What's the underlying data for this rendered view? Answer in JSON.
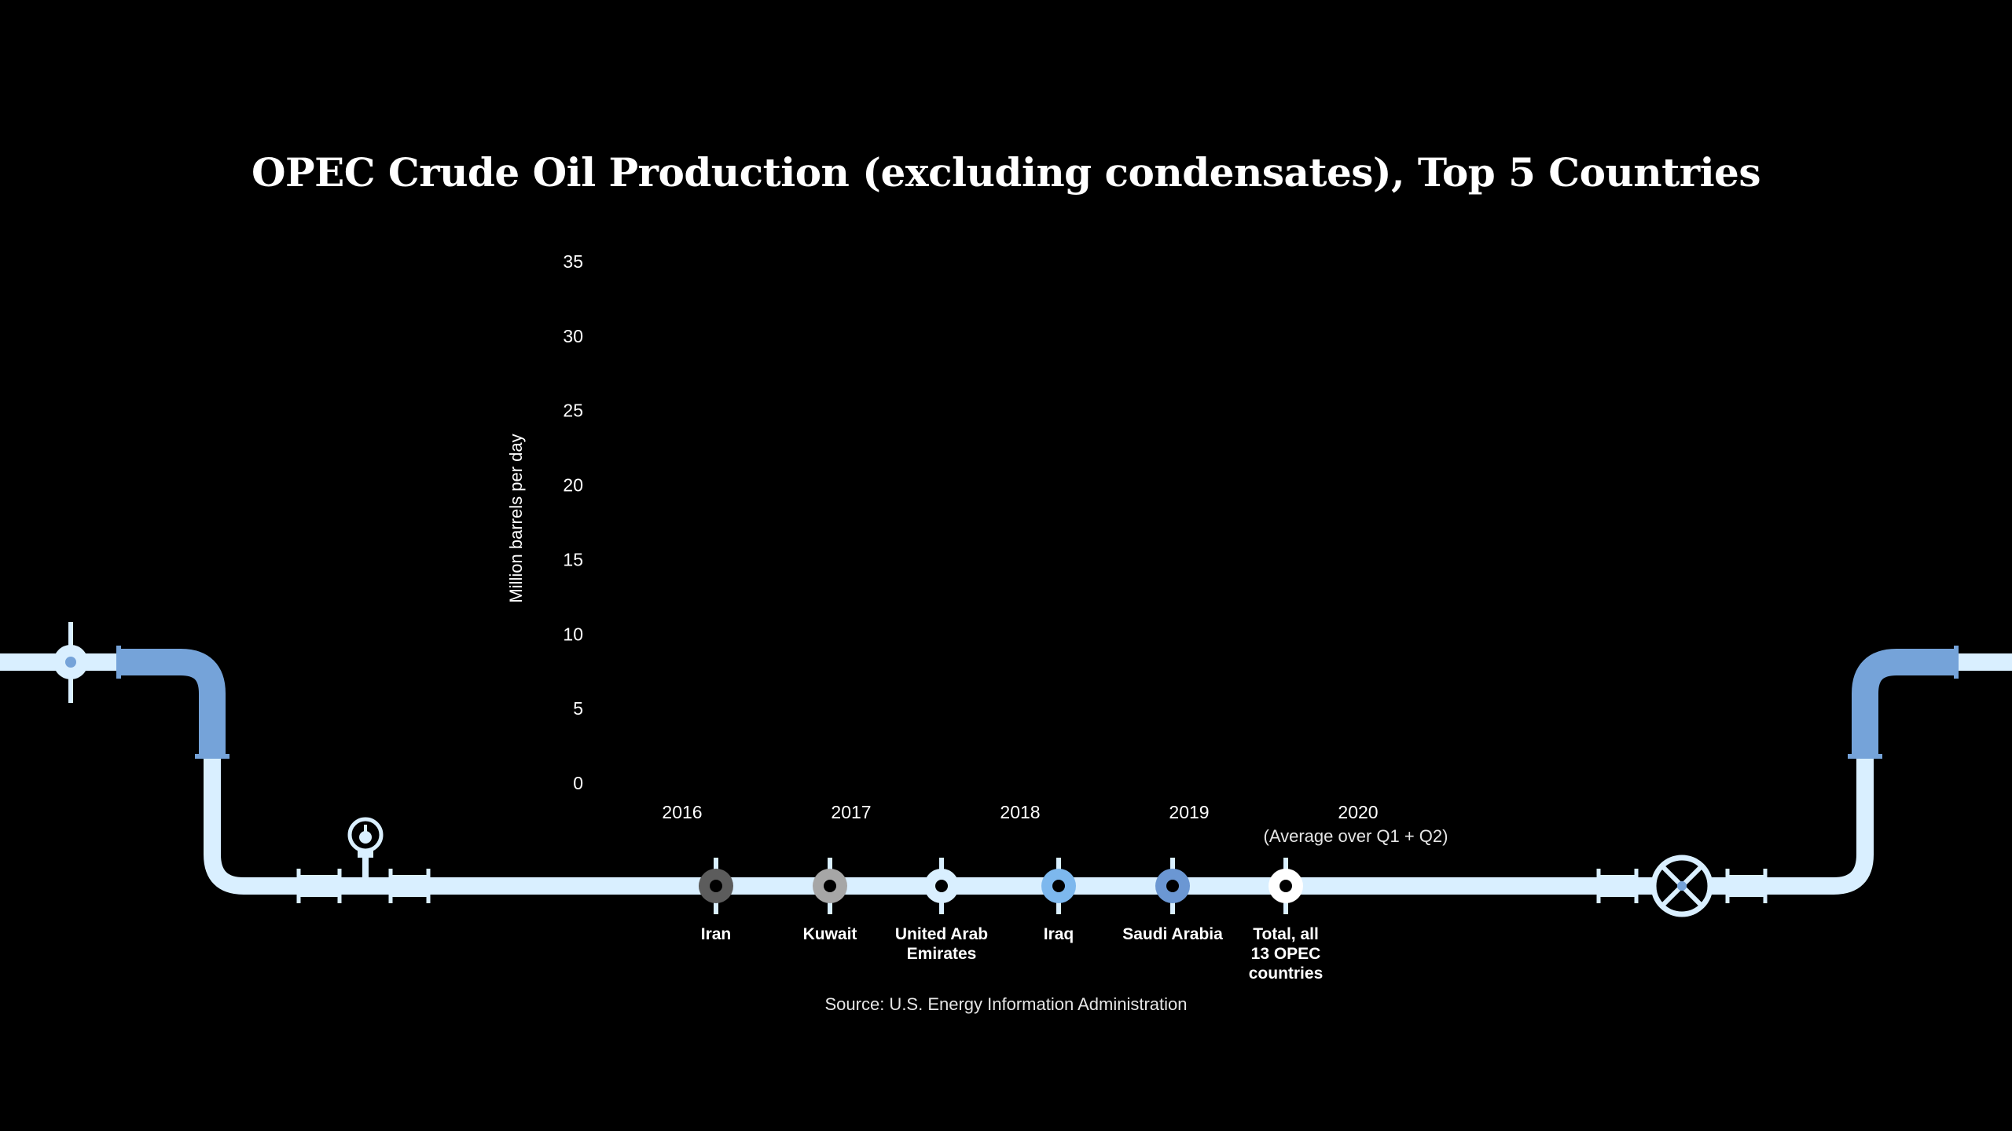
{
  "colors": {
    "background": "#000000",
    "pipe_light": "#d9efff",
    "pipe_blue": "#75a3d9",
    "text": "#ffffff"
  },
  "chart_data": {
    "type": "bar",
    "title": "OPEC Crude Oil Production (excluding condensates), Top 5 Countries",
    "ylabel": "Million barrels per day",
    "ylim": [
      0,
      35
    ],
    "yticks": [
      0,
      5,
      10,
      15,
      20,
      25,
      30,
      35
    ],
    "categories": [
      "2016",
      "2017",
      "2018",
      "2019",
      "2020"
    ],
    "category_note": "(Average over Q1 + Q2)",
    "source": "Source: U.S. Energy Information Administration",
    "legend": {
      "placement": "bottom",
      "entries": [
        {
          "label": "Iran",
          "color": "#5c5c5c"
        },
        {
          "label": "Kuwait",
          "color": "#a6a6a6"
        },
        {
          "label": "United Arab Emirates",
          "color": "#d9efff"
        },
        {
          "label": "Iraq",
          "color": "#7db8ee"
        },
        {
          "label": "Saudi Arabia",
          "color": "#6b97d3"
        },
        {
          "label": "Total, all 13 OPEC countries",
          "color": "#ffffff"
        }
      ]
    }
  }
}
